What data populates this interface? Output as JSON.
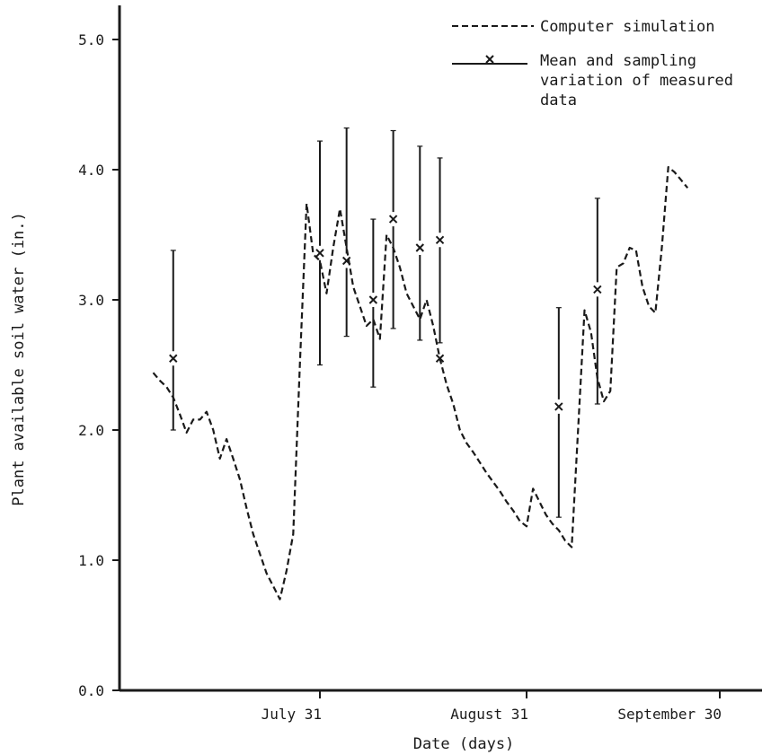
{
  "chart_data": {
    "type": "line",
    "title": "",
    "xlabel": "Date (days)",
    "ylabel": "Plant available soil water (in.)",
    "xlim": [
      "1987-07-06",
      "1987-10-01"
    ],
    "ylim": [
      0,
      5.3
    ],
    "grid": false,
    "legend_position": "top-right",
    "x_ticks": [
      {
        "date": "1987-07-31",
        "label": "July 31"
      },
      {
        "date": "1987-08-31",
        "label": "August 31"
      },
      {
        "date": "1987-09-30",
        "label": "September 30"
      }
    ],
    "y_ticks": [
      {
        "value": 0,
        "label": "0.0"
      },
      {
        "value": 1,
        "label": "1.0"
      },
      {
        "value": 2,
        "label": "2.0"
      },
      {
        "value": 3,
        "label": "3.0"
      },
      {
        "value": 4,
        "label": "4.0"
      },
      {
        "value": 5,
        "label": "5.0"
      }
    ],
    "legend": [
      {
        "label": "Computer simulation",
        "style": "dashed"
      },
      {
        "label": "Mean and sampling variation of measured data",
        "lines": [
          "Mean and sampling",
          "variation of measured",
          "data"
        ],
        "style": "errorbar"
      }
    ],
    "series": [
      {
        "style": "dashed",
        "points": [
          [
            "1987-07-06",
            2.44
          ],
          [
            "1987-07-07",
            2.38
          ],
          [
            "1987-07-08",
            2.33
          ],
          [
            "1987-07-09",
            2.25
          ],
          [
            "1987-07-10",
            2.12
          ],
          [
            "1987-07-11",
            1.98
          ],
          [
            "1987-07-12",
            2.08
          ],
          [
            "1987-07-13",
            2.08
          ],
          [
            "1987-07-14",
            2.14
          ],
          [
            "1987-07-15",
            2.0
          ],
          [
            "1987-07-16",
            1.78
          ],
          [
            "1987-07-17",
            1.93
          ],
          [
            "1987-07-18",
            1.78
          ],
          [
            "1987-07-19",
            1.62
          ],
          [
            "1987-07-20",
            1.4
          ],
          [
            "1987-07-21",
            1.2
          ],
          [
            "1987-07-22",
            1.05
          ],
          [
            "1987-07-23",
            0.9
          ],
          [
            "1987-07-24",
            0.8
          ],
          [
            "1987-07-25",
            0.7
          ],
          [
            "1987-07-26",
            0.92
          ],
          [
            "1987-07-27",
            1.2
          ],
          [
            "1987-07-28",
            2.5
          ],
          [
            "1987-07-29",
            3.74
          ],
          [
            "1987-07-30",
            3.35
          ],
          [
            "1987-07-31",
            3.3
          ],
          [
            "1987-08-01",
            3.05
          ],
          [
            "1987-08-02",
            3.4
          ],
          [
            "1987-08-03",
            3.7
          ],
          [
            "1987-08-04",
            3.4
          ],
          [
            "1987-08-05",
            3.1
          ],
          [
            "1987-08-06",
            2.95
          ],
          [
            "1987-08-07",
            2.8
          ],
          [
            "1987-08-08",
            2.85
          ],
          [
            "1987-08-09",
            2.7
          ],
          [
            "1987-08-10",
            3.5
          ],
          [
            "1987-08-11",
            3.4
          ],
          [
            "1987-08-12",
            3.25
          ],
          [
            "1987-08-13",
            3.05
          ],
          [
            "1987-08-14",
            2.95
          ],
          [
            "1987-08-15",
            2.85
          ],
          [
            "1987-08-16",
            3.0
          ],
          [
            "1987-08-17",
            2.8
          ],
          [
            "1987-08-18",
            2.55
          ],
          [
            "1987-08-19",
            2.35
          ],
          [
            "1987-08-20",
            2.2
          ],
          [
            "1987-08-21",
            2.0
          ],
          [
            "1987-08-22",
            1.9
          ],
          [
            "1987-08-23",
            1.83
          ],
          [
            "1987-08-24",
            1.75
          ],
          [
            "1987-08-25",
            1.67
          ],
          [
            "1987-08-26",
            1.6
          ],
          [
            "1987-08-27",
            1.53
          ],
          [
            "1987-08-28",
            1.45
          ],
          [
            "1987-08-29",
            1.38
          ],
          [
            "1987-08-30",
            1.3
          ],
          [
            "1987-08-31",
            1.26
          ],
          [
            "1987-09-01",
            1.55
          ],
          [
            "1987-09-02",
            1.45
          ],
          [
            "1987-09-03",
            1.35
          ],
          [
            "1987-09-04",
            1.28
          ],
          [
            "1987-09-05",
            1.23
          ],
          [
            "1987-09-06",
            1.15
          ],
          [
            "1987-09-07",
            1.1
          ],
          [
            "1987-09-08",
            2.0
          ],
          [
            "1987-09-09",
            2.92
          ],
          [
            "1987-09-10",
            2.75
          ],
          [
            "1987-09-11",
            2.4
          ],
          [
            "1987-09-12",
            2.22
          ],
          [
            "1987-09-13",
            2.3
          ],
          [
            "1987-09-14",
            3.25
          ],
          [
            "1987-09-15",
            3.28
          ],
          [
            "1987-09-16",
            3.4
          ],
          [
            "1987-09-17",
            3.38
          ],
          [
            "1987-09-18",
            3.1
          ],
          [
            "1987-09-19",
            2.95
          ],
          [
            "1987-09-20",
            2.9
          ],
          [
            "1987-09-21",
            3.4
          ],
          [
            "1987-09-22",
            4.02
          ],
          [
            "1987-09-23",
            3.98
          ],
          [
            "1987-09-24",
            3.92
          ],
          [
            "1987-09-25",
            3.86
          ]
        ]
      }
    ],
    "measured": [
      {
        "date": "1987-07-09",
        "mean": 2.55,
        "low": 2.0,
        "high": 3.38
      },
      {
        "date": "1987-07-31",
        "mean": 3.36,
        "low": 2.5,
        "high": 4.22
      },
      {
        "date": "1987-08-04",
        "mean": 3.3,
        "low": 2.72,
        "high": 4.32
      },
      {
        "date": "1987-08-08",
        "mean": 3.0,
        "low": 2.33,
        "high": 3.62
      },
      {
        "date": "1987-08-11",
        "mean": 3.62,
        "low": 2.78,
        "high": 4.3
      },
      {
        "date": "1987-08-15",
        "mean": 3.4,
        "low": 2.69,
        "high": 4.18
      },
      {
        "date": "1987-08-18",
        "mean": 3.46,
        "low": 2.67,
        "high": 4.09
      },
      {
        "date": "1987-08-18",
        "mean": 2.55,
        "low": null,
        "high": null
      },
      {
        "date": "1987-09-05",
        "mean": 2.18,
        "low": 1.33,
        "high": 2.94
      },
      {
        "date": "1987-09-11",
        "mean": 3.08,
        "low": 2.2,
        "high": 3.78
      }
    ]
  }
}
